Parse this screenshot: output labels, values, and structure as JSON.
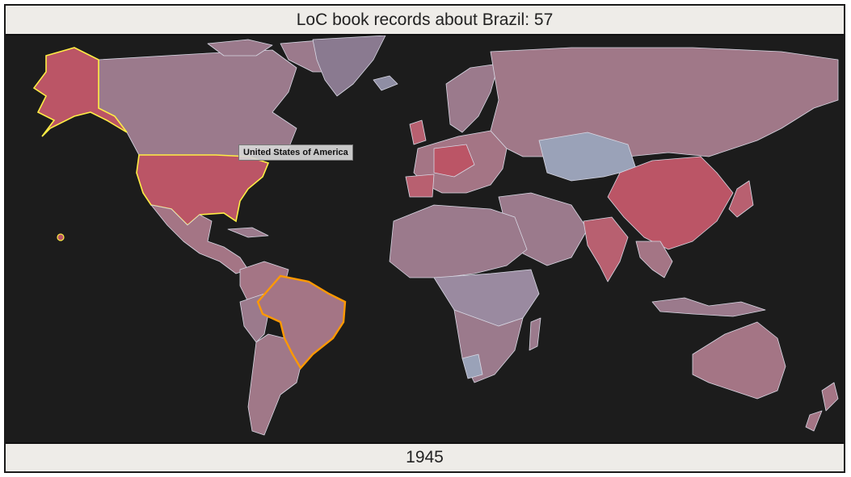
{
  "title": "LoC book records about Brazil: 57",
  "year": "1945",
  "tooltip": "United States of America",
  "colors": {
    "background": "#1c1c1c",
    "bar": "#eeece8",
    "highlight": "#bb5566",
    "low": "#9aa2b8",
    "mid": "#9b7a8c",
    "selected_border": "#ff9900",
    "hover_border": "#ffee44"
  },
  "selected_country": "Brazil",
  "hovered_country": "United States of America"
}
